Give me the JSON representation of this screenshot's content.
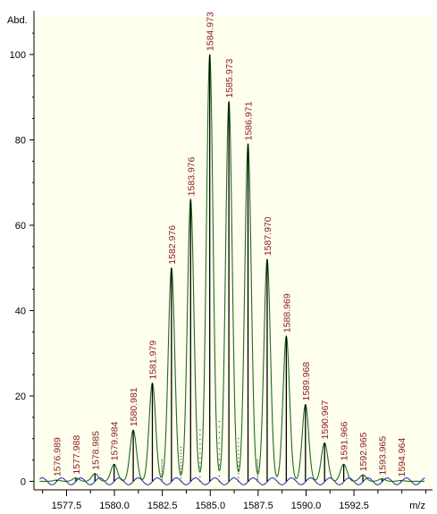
{
  "chart_data": {
    "type": "line",
    "ylabel": "Abd.",
    "xlabel": "m/z",
    "xlim": [
      1575.8,
      1596.6
    ],
    "ylim": [
      -2,
      109
    ],
    "yticks": [
      0,
      20,
      40,
      60,
      80,
      100
    ],
    "xticks": [
      1577.5,
      1580.0,
      1582.5,
      1585.0,
      1587.5,
      1590.0,
      1592.5
    ],
    "xtick_labels": [
      "1577.5",
      "1580.0",
      "1582.5",
      "1585.0",
      "1587.5",
      "1590.0",
      "1592.5"
    ],
    "ytick_labels": [
      "0",
      "20",
      "40",
      "60",
      "80",
      "100"
    ],
    "minor_ticks": true,
    "peak_width": 0.17,
    "series": [
      {
        "kind": "profile",
        "color": "#1e6b1e",
        "x": [
          1576.989,
          1577.988,
          1578.985,
          1579.984,
          1580.981,
          1581.979,
          1582.976,
          1583.976,
          1584.973,
          1585.973,
          1586.971,
          1587.97,
          1588.969,
          1589.968,
          1590.967,
          1591.966,
          1592.965,
          1593.965,
          1594.964
        ],
        "y": [
          0.3,
          0.8,
          1.8,
          4.0,
          12.0,
          23.0,
          50.0,
          66.0,
          100.0,
          89.0,
          79.0,
          52.0,
          34.0,
          18.0,
          9.0,
          4.0,
          1.5,
          0.6,
          0.2
        ]
      },
      {
        "kind": "sticks",
        "color": "#000000",
        "x": [
          1576.989,
          1577.988,
          1578.985,
          1579.984,
          1580.981,
          1581.979,
          1582.976,
          1583.976,
          1584.973,
          1585.973,
          1586.971,
          1587.97,
          1588.969,
          1589.968,
          1590.967,
          1591.966,
          1592.965,
          1593.965,
          1594.964
        ],
        "y": [
          0.3,
          0.8,
          1.8,
          4.0,
          12.0,
          23.0,
          50.0,
          66.0,
          100.0,
          89.0,
          79.0,
          52.0,
          34.0,
          18.0,
          9.0,
          4.0,
          1.5,
          0.6,
          0.2
        ]
      },
      {
        "kind": "dotted",
        "color": "#202020",
        "x": [
          1582.48,
          1583.47,
          1584.47,
          1585.47,
          1586.47,
          1587.47
        ],
        "y": [
          5,
          8,
          12,
          14,
          10,
          5
        ]
      },
      {
        "kind": "residual",
        "color": "#2020c0",
        "amplitude": 0.8
      }
    ],
    "peak_labels": [
      "1576.989",
      "1577.988",
      "1578.985",
      "1579.984",
      "1580.981",
      "1581.979",
      "1582.976",
      "1583.976",
      "1584.973",
      "1585.973",
      "1586.971",
      "1587.970",
      "1588.969",
      "1589.968",
      "1590.967",
      "1591.966",
      "1592.965",
      "1593.965",
      "1594.964"
    ]
  },
  "colors": {
    "plot_background": "#ffffef",
    "axis": "#000000",
    "label_text": "#8b1a1a"
  }
}
